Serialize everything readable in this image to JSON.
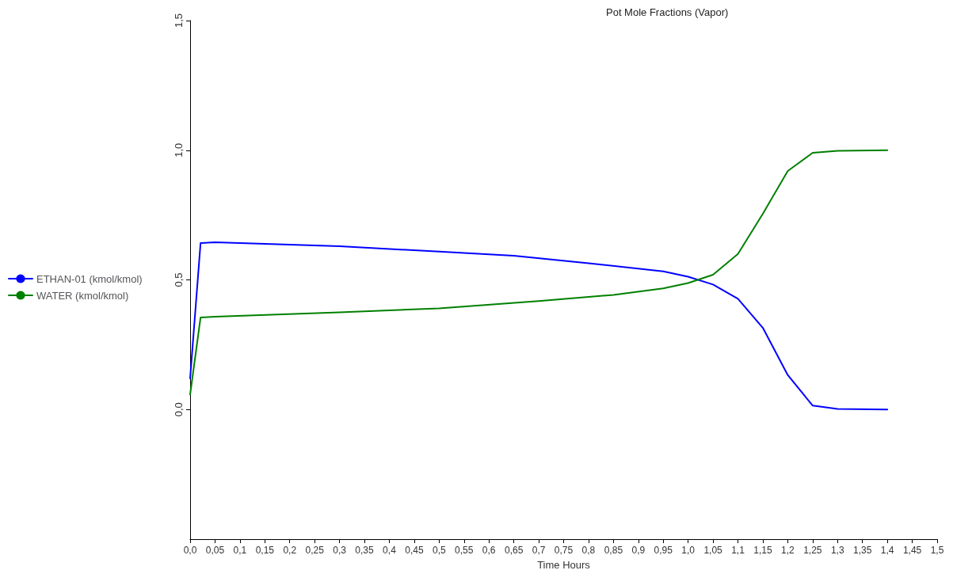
{
  "chart_data": {
    "type": "line",
    "title": "Pot Mole Fractions (Vapor)",
    "xlabel": "Time Hours",
    "xlim": [
      0,
      1.5
    ],
    "xticks": [
      {
        "value": 0,
        "label": "0,0"
      },
      {
        "value": 0.05,
        "label": "0,05"
      },
      {
        "value": 0.1,
        "label": "0,1"
      },
      {
        "value": 0.15,
        "label": "0,15"
      },
      {
        "value": 0.2,
        "label": "0,2"
      },
      {
        "value": 0.25,
        "label": "0,25"
      },
      {
        "value": 0.3,
        "label": "0,3"
      },
      {
        "value": 0.35,
        "label": "0,35"
      },
      {
        "value": 0.4,
        "label": "0,4"
      },
      {
        "value": 0.45,
        "label": "0,45"
      },
      {
        "value": 0.5,
        "label": "0,5"
      },
      {
        "value": 0.55,
        "label": "0,55"
      },
      {
        "value": 0.6,
        "label": "0,6"
      },
      {
        "value": 0.65,
        "label": "0,65"
      },
      {
        "value": 0.7,
        "label": "0,7"
      },
      {
        "value": 0.75,
        "label": "0,75"
      },
      {
        "value": 0.8,
        "label": "0,8"
      },
      {
        "value": 0.85,
        "label": "0,85"
      },
      {
        "value": 0.9,
        "label": "0,9"
      },
      {
        "value": 0.95,
        "label": "0,95"
      },
      {
        "value": 1.0,
        "label": "1,0"
      },
      {
        "value": 1.05,
        "label": "1,05"
      },
      {
        "value": 1.1,
        "label": "1,1"
      },
      {
        "value": 1.15,
        "label": "1,15"
      },
      {
        "value": 1.2,
        "label": "1,2"
      },
      {
        "value": 1.25,
        "label": "1,25"
      },
      {
        "value": 1.3,
        "label": "1,3"
      },
      {
        "value": 1.35,
        "label": "1,35"
      },
      {
        "value": 1.4,
        "label": "1,4"
      },
      {
        "value": 1.45,
        "label": "1,45"
      },
      {
        "value": 1.5,
        "label": "1,5"
      }
    ],
    "ylim": [
      -0.5,
      1.5
    ],
    "yticks": [
      {
        "value": 0,
        "label": "0,0"
      },
      {
        "value": 0.5,
        "label": "0,5"
      },
      {
        "value": 1.0,
        "label": "1,0"
      },
      {
        "value": 1.5,
        "label": "1,5"
      }
    ],
    "grid": false,
    "legend": "left",
    "line_style": "solid",
    "series": [
      {
        "name": "ETHAN-01 (kmol/kmol)",
        "color": "#0000ff",
        "x": [
          0,
          0.021,
          0.05,
          0.3,
          0.5,
          0.65,
          0.8,
          0.95,
          1.0,
          1.05,
          1.1,
          1.15,
          1.2,
          1.25,
          1.3,
          1.4
        ],
        "values": [
          0.12,
          0.642,
          0.645,
          0.63,
          0.609,
          0.593,
          0.564,
          0.533,
          0.512,
          0.482,
          0.427,
          0.315,
          0.133,
          0.015,
          0.002,
          0.0
        ]
      },
      {
        "name": "WATER (kmol/kmol)",
        "color": "#008000",
        "x": [
          0,
          0.021,
          0.05,
          0.3,
          0.5,
          0.7,
          0.85,
          0.95,
          1.0,
          1.05,
          1.1,
          1.15,
          1.2,
          1.25,
          1.3,
          1.4
        ],
        "values": [
          0.058,
          0.355,
          0.358,
          0.375,
          0.39,
          0.418,
          0.442,
          0.467,
          0.488,
          0.52,
          0.6,
          0.755,
          0.92,
          0.99,
          0.998,
          1.0
        ]
      }
    ]
  }
}
